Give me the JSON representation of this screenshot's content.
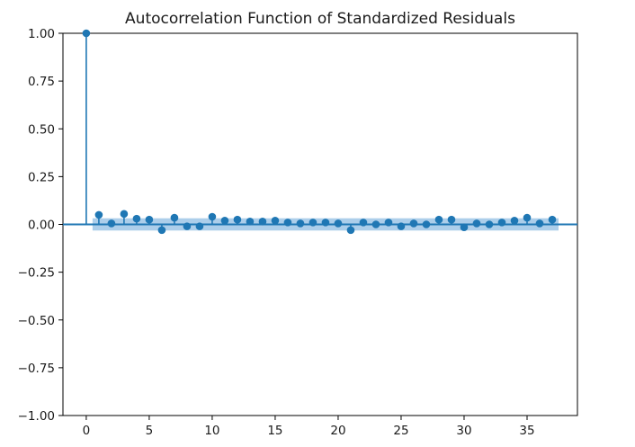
{
  "chart_data": {
    "type": "stem",
    "title": "Autocorrelation Function of Standardized Residuals",
    "xlabel": "",
    "ylabel": "",
    "xlim": [
      -1.85,
      39.0
    ],
    "ylim": [
      -1.0,
      1.0
    ],
    "xticks": [
      0,
      5,
      10,
      15,
      20,
      25,
      30,
      35
    ],
    "yticks": [
      "1.00",
      "0.75",
      "0.50",
      "0.25",
      "0.00",
      "−0.25",
      "−0.50",
      "−0.75",
      "−1.00"
    ],
    "ytick_values": [
      1.0,
      0.75,
      0.5,
      0.25,
      0.0,
      -0.25,
      -0.5,
      -0.75,
      -1.0
    ],
    "lags": [
      0,
      1,
      2,
      3,
      4,
      5,
      6,
      7,
      8,
      9,
      10,
      11,
      12,
      13,
      14,
      15,
      16,
      17,
      18,
      19,
      20,
      21,
      22,
      23,
      24,
      25,
      26,
      27,
      28,
      29,
      30,
      31,
      32,
      33,
      34,
      35,
      36,
      37
    ],
    "acf": [
      1.0,
      0.05,
      0.005,
      0.055,
      0.03,
      0.025,
      -0.03,
      0.035,
      -0.01,
      -0.01,
      0.04,
      0.02,
      0.025,
      0.015,
      0.015,
      0.02,
      0.01,
      0.005,
      0.01,
      0.01,
      0.005,
      -0.03,
      0.01,
      0.0,
      0.01,
      -0.01,
      0.005,
      0.0,
      0.025,
      0.025,
      -0.015,
      0.005,
      0.0,
      0.01,
      0.02,
      0.035,
      0.005,
      0.025
    ],
    "confidence_band": {
      "lags": [
        1,
        37
      ],
      "upper": 0.032,
      "lower": -0.032
    },
    "colors": {
      "stem": "#1f77b4",
      "band": "#9ec6e6",
      "axis": "#000000"
    }
  }
}
